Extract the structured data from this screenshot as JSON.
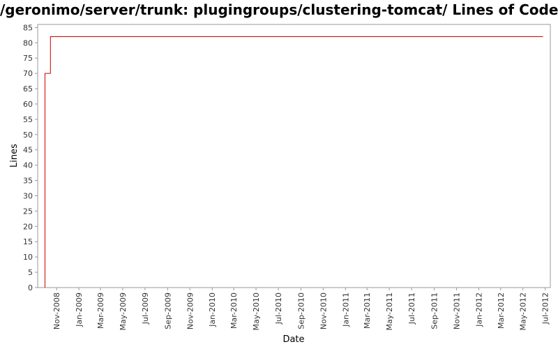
{
  "chart_data": {
    "type": "line",
    "title": "/geronimo/server/trunk: plugingroups/clustering-tomcat/ Lines of Code",
    "xlabel": "Date",
    "ylabel": "Lines",
    "ylim": [
      0,
      86
    ],
    "yticks": [
      0,
      5,
      10,
      15,
      20,
      25,
      30,
      35,
      40,
      45,
      50,
      55,
      60,
      65,
      70,
      75,
      80,
      85
    ],
    "xlim": [
      "2008-09-10",
      "2012-07-15"
    ],
    "xticks": [
      {
        "date": "2008-11-01",
        "label": "Nov-2008"
      },
      {
        "date": "2009-01-01",
        "label": "Jan-2009"
      },
      {
        "date": "2009-03-01",
        "label": "Mar-2009"
      },
      {
        "date": "2009-05-01",
        "label": "May-2009"
      },
      {
        "date": "2009-07-01",
        "label": "Jul-2009"
      },
      {
        "date": "2009-09-01",
        "label": "Sep-2009"
      },
      {
        "date": "2009-11-01",
        "label": "Nov-2009"
      },
      {
        "date": "2010-01-01",
        "label": "Jan-2010"
      },
      {
        "date": "2010-03-01",
        "label": "Mar-2010"
      },
      {
        "date": "2010-05-01",
        "label": "May-2010"
      },
      {
        "date": "2010-07-01",
        "label": "Jul-2010"
      },
      {
        "date": "2010-09-01",
        "label": "Sep-2010"
      },
      {
        "date": "2010-11-01",
        "label": "Nov-2010"
      },
      {
        "date": "2011-01-01",
        "label": "Jan-2011"
      },
      {
        "date": "2011-03-01",
        "label": "Mar-2011"
      },
      {
        "date": "2011-05-01",
        "label": "May-2011"
      },
      {
        "date": "2011-07-01",
        "label": "Jul-2011"
      },
      {
        "date": "2011-09-01",
        "label": "Sep-2011"
      },
      {
        "date": "2011-11-01",
        "label": "Nov-2011"
      },
      {
        "date": "2012-01-01",
        "label": "Jan-2012"
      },
      {
        "date": "2012-03-01",
        "label": "Mar-2012"
      },
      {
        "date": "2012-05-01",
        "label": "May-2012"
      },
      {
        "date": "2012-07-01",
        "label": "Jul-2012"
      }
    ],
    "grid": false,
    "series": [
      {
        "color": "#cc0000",
        "step": true,
        "points": [
          {
            "x": "2008-09-30",
            "y": 0
          },
          {
            "x": "2008-09-30",
            "y": 70
          },
          {
            "x": "2008-10-15",
            "y": 70
          },
          {
            "x": "2008-10-15",
            "y": 82
          },
          {
            "x": "2012-06-25",
            "y": 82
          }
        ]
      }
    ]
  }
}
